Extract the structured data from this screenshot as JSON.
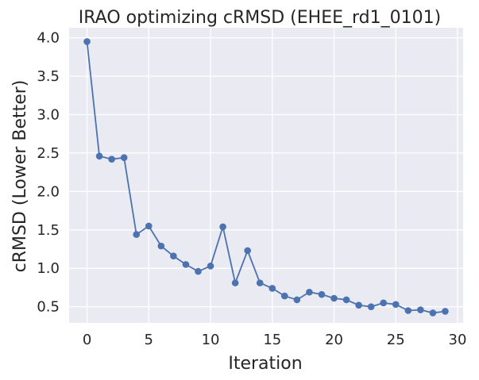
{
  "chart_data": {
    "type": "line",
    "title": "IRAO optimizing cRMSD (EHEE_rd1_0101)",
    "xlabel": "Iteration",
    "ylabel": "cRMSD (Lower Better)",
    "xlim": [
      -1.45,
      30.45
    ],
    "ylim": [
      0.29,
      4.13
    ],
    "xticks": [
      0,
      5,
      10,
      15,
      20,
      25,
      30
    ],
    "yticks": [
      0.5,
      1.0,
      1.5,
      2.0,
      2.5,
      3.0,
      3.5,
      4.0
    ],
    "xtick_labels": [
      "0",
      "5",
      "10",
      "15",
      "20",
      "25",
      "30"
    ],
    "ytick_labels": [
      "0.5",
      "1.0",
      "1.5",
      "2.0",
      "2.5",
      "3.0",
      "3.5",
      "4.0"
    ],
    "grid": true,
    "color": "#4c72b0",
    "series": [
      {
        "x": [
          0,
          1,
          2,
          3,
          4,
          5,
          6,
          7,
          8,
          9,
          10,
          11,
          12,
          13,
          14,
          15,
          16,
          17,
          18,
          19,
          20,
          21,
          22,
          23,
          24,
          25,
          26,
          27,
          28,
          29
        ],
        "y": [
          3.95,
          2.46,
          2.42,
          2.44,
          1.44,
          1.55,
          1.29,
          1.16,
          1.05,
          0.96,
          1.03,
          1.54,
          0.81,
          1.23,
          0.81,
          0.74,
          0.64,
          0.59,
          0.69,
          0.66,
          0.61,
          0.59,
          0.52,
          0.5,
          0.55,
          0.53,
          0.45,
          0.46,
          0.42,
          0.44
        ]
      }
    ]
  }
}
